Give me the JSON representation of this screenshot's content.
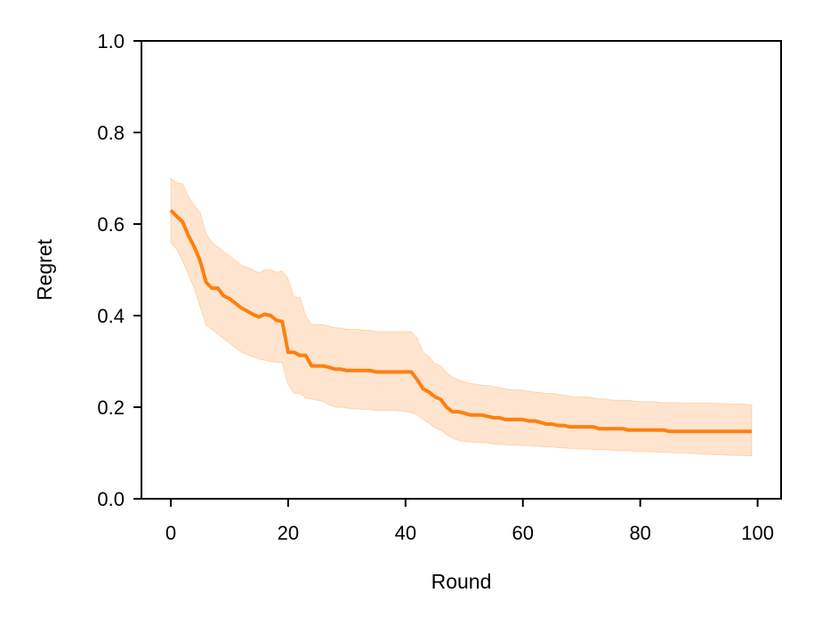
{
  "chart_data": {
    "type": "line",
    "title": "",
    "xlabel": "Round",
    "ylabel": "Regret",
    "xlim": [
      -5,
      104
    ],
    "ylim": [
      0.0,
      1.0
    ],
    "xticks": [
      0,
      20,
      40,
      60,
      80,
      100
    ],
    "xtick_labels": [
      "0",
      "20",
      "40",
      "60",
      "80",
      "100"
    ],
    "yticks": [
      0.0,
      0.2,
      0.4,
      0.6,
      0.8,
      1.0
    ],
    "ytick_labels": [
      "0.0",
      "0.2",
      "0.4",
      "0.6",
      "0.8",
      "1.0"
    ],
    "grid": false,
    "series": [
      {
        "color": "#ff7f0e",
        "band_color": "#ff7f0e",
        "x": [
          0,
          1,
          2,
          3,
          4,
          5,
          6,
          7,
          8,
          9,
          10,
          11,
          12,
          13,
          14,
          15,
          16,
          17,
          18,
          19,
          20,
          21,
          22,
          23,
          24,
          25,
          26,
          27,
          28,
          29,
          30,
          31,
          32,
          33,
          34,
          35,
          36,
          37,
          38,
          39,
          40,
          41,
          42,
          43,
          44,
          45,
          46,
          47,
          48,
          49,
          50,
          51,
          52,
          53,
          54,
          55,
          56,
          57,
          58,
          59,
          60,
          61,
          62,
          63,
          64,
          65,
          66,
          67,
          68,
          69,
          70,
          71,
          72,
          73,
          74,
          75,
          76,
          77,
          78,
          79,
          80,
          81,
          82,
          83,
          84,
          85,
          86,
          87,
          88,
          89,
          90,
          91,
          92,
          93,
          94,
          95,
          96,
          97,
          98,
          99
        ],
        "mean": [
          0.63,
          0.617,
          0.605,
          0.575,
          0.55,
          0.52,
          0.473,
          0.46,
          0.46,
          0.443,
          0.437,
          0.427,
          0.417,
          0.41,
          0.403,
          0.397,
          0.403,
          0.4,
          0.39,
          0.387,
          0.32,
          0.32,
          0.313,
          0.313,
          0.29,
          0.29,
          0.29,
          0.287,
          0.283,
          0.283,
          0.28,
          0.28,
          0.28,
          0.28,
          0.28,
          0.277,
          0.277,
          0.277,
          0.277,
          0.277,
          0.277,
          0.277,
          0.26,
          0.24,
          0.233,
          0.223,
          0.217,
          0.2,
          0.19,
          0.19,
          0.187,
          0.183,
          0.183,
          0.183,
          0.18,
          0.177,
          0.177,
          0.173,
          0.173,
          0.173,
          0.173,
          0.17,
          0.17,
          0.167,
          0.163,
          0.163,
          0.16,
          0.16,
          0.157,
          0.157,
          0.157,
          0.157,
          0.157,
          0.153,
          0.153,
          0.153,
          0.153,
          0.153,
          0.15,
          0.15,
          0.15,
          0.15,
          0.15,
          0.15,
          0.15,
          0.147,
          0.147,
          0.147,
          0.147,
          0.147,
          0.147,
          0.147,
          0.147,
          0.147,
          0.147,
          0.147,
          0.147,
          0.147,
          0.147,
          0.147
        ],
        "upper": [
          0.7,
          0.69,
          0.688,
          0.66,
          0.64,
          0.625,
          0.58,
          0.56,
          0.55,
          0.54,
          0.53,
          0.52,
          0.51,
          0.505,
          0.5,
          0.493,
          0.5,
          0.5,
          0.495,
          0.497,
          0.48,
          0.44,
          0.44,
          0.4,
          0.38,
          0.38,
          0.38,
          0.377,
          0.373,
          0.373,
          0.37,
          0.37,
          0.37,
          0.368,
          0.368,
          0.365,
          0.365,
          0.365,
          0.365,
          0.365,
          0.365,
          0.365,
          0.35,
          0.32,
          0.31,
          0.295,
          0.29,
          0.275,
          0.265,
          0.26,
          0.255,
          0.252,
          0.25,
          0.248,
          0.247,
          0.245,
          0.243,
          0.24,
          0.238,
          0.238,
          0.237,
          0.235,
          0.233,
          0.232,
          0.23,
          0.23,
          0.228,
          0.226,
          0.224,
          0.222,
          0.222,
          0.222,
          0.22,
          0.218,
          0.218,
          0.216,
          0.215,
          0.215,
          0.215,
          0.213,
          0.212,
          0.212,
          0.212,
          0.211,
          0.21,
          0.21,
          0.21,
          0.209,
          0.209,
          0.209,
          0.209,
          0.209,
          0.209,
          0.208,
          0.208,
          0.207,
          0.207,
          0.207,
          0.206,
          0.205
        ],
        "lower": [
          0.56,
          0.545,
          0.52,
          0.49,
          0.46,
          0.42,
          0.38,
          0.37,
          0.36,
          0.35,
          0.34,
          0.33,
          0.32,
          0.315,
          0.31,
          0.305,
          0.303,
          0.3,
          0.298,
          0.297,
          0.25,
          0.23,
          0.23,
          0.22,
          0.218,
          0.215,
          0.212,
          0.205,
          0.2,
          0.2,
          0.198,
          0.196,
          0.196,
          0.195,
          0.195,
          0.193,
          0.193,
          0.193,
          0.193,
          0.192,
          0.191,
          0.188,
          0.183,
          0.173,
          0.165,
          0.155,
          0.15,
          0.14,
          0.132,
          0.128,
          0.125,
          0.124,
          0.123,
          0.122,
          0.122,
          0.12,
          0.119,
          0.118,
          0.117,
          0.117,
          0.116,
          0.116,
          0.115,
          0.114,
          0.113,
          0.113,
          0.112,
          0.111,
          0.11,
          0.11,
          0.109,
          0.109,
          0.108,
          0.107,
          0.107,
          0.106,
          0.105,
          0.105,
          0.105,
          0.104,
          0.104,
          0.103,
          0.103,
          0.102,
          0.102,
          0.101,
          0.1,
          0.1,
          0.099,
          0.099,
          0.098,
          0.097,
          0.097,
          0.096,
          0.096,
          0.095,
          0.095,
          0.095,
          0.094,
          0.094
        ]
      }
    ]
  }
}
